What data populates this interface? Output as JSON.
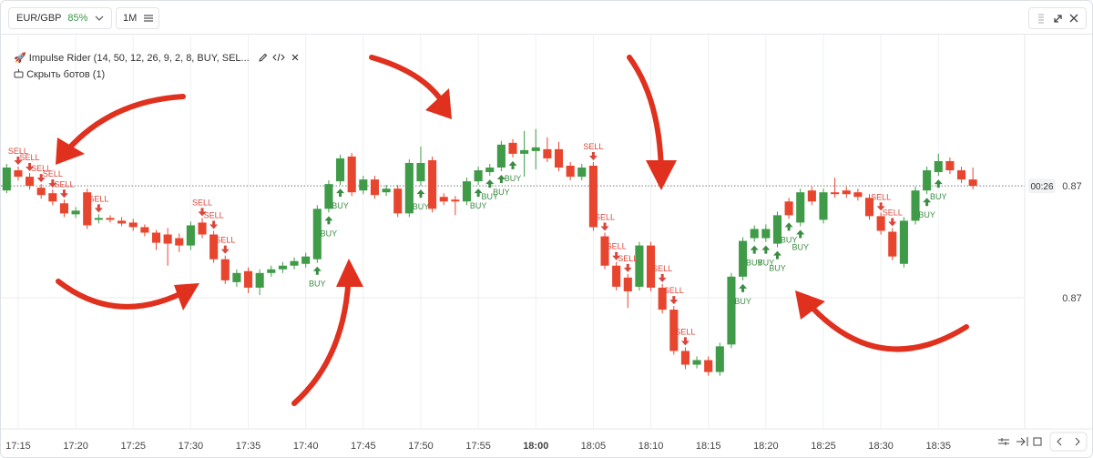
{
  "toolbar": {
    "symbol": "EUR/GBP",
    "payout": "85%",
    "timeframe": "1M"
  },
  "bot": {
    "name": "Impulse Rider (14, 50, 12, 26, 9, 2, 8, BUY, SEL...",
    "hide": "Скрыть ботов (1)"
  },
  "chart_data": {
    "type": "candlestick",
    "up_color": "#3f9b48",
    "down_color": "#e8452f",
    "grid": true,
    "ylim": [
      0.86857,
      0.87287
    ],
    "yticks": [
      {
        "value": 0.87,
        "label": "0.87"
      }
    ],
    "last_price": {
      "value": 0.87122,
      "label": "0.87"
    },
    "timer": "00:26",
    "xlim": [
      -0.5,
      88.5
    ],
    "xticks": [
      {
        "value": 1,
        "label": "17:15"
      },
      {
        "value": 6,
        "label": "17:20"
      },
      {
        "value": 11,
        "label": "17:25"
      },
      {
        "value": 16,
        "label": "17:30"
      },
      {
        "value": 21,
        "label": "17:35"
      },
      {
        "value": 26,
        "label": "17:40"
      },
      {
        "value": 31,
        "label": "17:45"
      },
      {
        "value": 36,
        "label": "17:50"
      },
      {
        "value": 41,
        "label": "17:55"
      },
      {
        "value": 46,
        "label": "18:00"
      },
      {
        "value": 51,
        "label": "18:05"
      },
      {
        "value": 56,
        "label": "18:10"
      },
      {
        "value": 61,
        "label": "18:15"
      },
      {
        "value": 66,
        "label": "18:20"
      },
      {
        "value": 71,
        "label": "18:25"
      },
      {
        "value": 76,
        "label": "18:30"
      },
      {
        "value": 81,
        "label": "18:35"
      }
    ],
    "candles": [
      {
        "open": 0.87117,
        "high": 0.87146,
        "low": 0.87114,
        "close": 0.87142
      },
      {
        "open": 0.87139,
        "high": 0.87143,
        "low": 0.87128,
        "close": 0.87132
      },
      {
        "open": 0.87132,
        "high": 0.87136,
        "low": 0.87118,
        "close": 0.87122
      },
      {
        "open": 0.8712,
        "high": 0.87124,
        "low": 0.87108,
        "close": 0.87112
      },
      {
        "open": 0.87114,
        "high": 0.87118,
        "low": 0.87101,
        "close": 0.87105
      },
      {
        "open": 0.87103,
        "high": 0.87107,
        "low": 0.87088,
        "close": 0.87092
      },
      {
        "open": 0.87091,
        "high": 0.87099,
        "low": 0.87087,
        "close": 0.87095
      },
      {
        "open": 0.87115,
        "high": 0.87119,
        "low": 0.87075,
        "close": 0.87079
      },
      {
        "open": 0.87085,
        "high": 0.87091,
        "low": 0.87081,
        "close": 0.87087
      },
      {
        "open": 0.87087,
        "high": 0.8709,
        "low": 0.87082,
        "close": 0.87085
      },
      {
        "open": 0.87084,
        "high": 0.87088,
        "low": 0.87078,
        "close": 0.87081
      },
      {
        "open": 0.87082,
        "high": 0.87086,
        "low": 0.87073,
        "close": 0.87077
      },
      {
        "open": 0.87077,
        "high": 0.8708,
        "low": 0.87067,
        "close": 0.87071
      },
      {
        "open": 0.87071,
        "high": 0.87074,
        "low": 0.87052,
        "close": 0.8706
      },
      {
        "open": 0.87069,
        "high": 0.87076,
        "low": 0.87035,
        "close": 0.87059
      },
      {
        "open": 0.87065,
        "high": 0.8707,
        "low": 0.8705,
        "close": 0.87057
      },
      {
        "open": 0.87057,
        "high": 0.87083,
        "low": 0.87052,
        "close": 0.87079
      },
      {
        "open": 0.87082,
        "high": 0.87087,
        "low": 0.87065,
        "close": 0.87069
      },
      {
        "open": 0.87069,
        "high": 0.87073,
        "low": 0.87038,
        "close": 0.87042
      },
      {
        "open": 0.87042,
        "high": 0.87046,
        "low": 0.87015,
        "close": 0.87019
      },
      {
        "open": 0.87017,
        "high": 0.87031,
        "low": 0.87012,
        "close": 0.87027
      },
      {
        "open": 0.87029,
        "high": 0.87033,
        "low": 0.87005,
        "close": 0.87011
      },
      {
        "open": 0.87011,
        "high": 0.87031,
        "low": 0.87003,
        "close": 0.87027
      },
      {
        "open": 0.87027,
        "high": 0.87035,
        "low": 0.87023,
        "close": 0.87031
      },
      {
        "open": 0.87031,
        "high": 0.87039,
        "low": 0.87027,
        "close": 0.87035
      },
      {
        "open": 0.87035,
        "high": 0.87044,
        "low": 0.87031,
        "close": 0.8704
      },
      {
        "open": 0.87037,
        "high": 0.87049,
        "low": 0.87033,
        "close": 0.87045
      },
      {
        "open": 0.87042,
        "high": 0.87101,
        "low": 0.87038,
        "close": 0.87097
      },
      {
        "open": 0.87097,
        "high": 0.87128,
        "low": 0.87093,
        "close": 0.87124
      },
      {
        "open": 0.87127,
        "high": 0.87156,
        "low": 0.87123,
        "close": 0.87152
      },
      {
        "open": 0.87154,
        "high": 0.87158,
        "low": 0.87111,
        "close": 0.87115
      },
      {
        "open": 0.87117,
        "high": 0.87133,
        "low": 0.87113,
        "close": 0.87129
      },
      {
        "open": 0.87129,
        "high": 0.87133,
        "low": 0.87108,
        "close": 0.87112
      },
      {
        "open": 0.87115,
        "high": 0.87123,
        "low": 0.87111,
        "close": 0.87119
      },
      {
        "open": 0.87119,
        "high": 0.87123,
        "low": 0.87088,
        "close": 0.87092
      },
      {
        "open": 0.87092,
        "high": 0.87151,
        "low": 0.87088,
        "close": 0.87147
      },
      {
        "open": 0.87127,
        "high": 0.87165,
        "low": 0.87122,
        "close": 0.87147
      },
      {
        "open": 0.8715,
        "high": 0.87154,
        "low": 0.87093,
        "close": 0.87097
      },
      {
        "open": 0.8711,
        "high": 0.87114,
        "low": 0.87101,
        "close": 0.87105
      },
      {
        "open": 0.87107,
        "high": 0.87111,
        "low": 0.8709,
        "close": 0.87105
      },
      {
        "open": 0.87105,
        "high": 0.87131,
        "low": 0.87101,
        "close": 0.87127
      },
      {
        "open": 0.87127,
        "high": 0.87143,
        "low": 0.87123,
        "close": 0.87139
      },
      {
        "open": 0.87137,
        "high": 0.87146,
        "low": 0.87133,
        "close": 0.87142
      },
      {
        "open": 0.87142,
        "high": 0.87171,
        "low": 0.87138,
        "close": 0.87167
      },
      {
        "open": 0.87169,
        "high": 0.87173,
        "low": 0.87153,
        "close": 0.87157
      },
      {
        "open": 0.87157,
        "high": 0.87182,
        "low": 0.87132,
        "close": 0.87161
      },
      {
        "open": 0.8716,
        "high": 0.87184,
        "low": 0.8714,
        "close": 0.87164
      },
      {
        "open": 0.87162,
        "high": 0.87175,
        "low": 0.87148,
        "close": 0.87152
      },
      {
        "open": 0.87162,
        "high": 0.8717,
        "low": 0.87138,
        "close": 0.87142
      },
      {
        "open": 0.87144,
        "high": 0.87148,
        "low": 0.87128,
        "close": 0.87132
      },
      {
        "open": 0.87132,
        "high": 0.87146,
        "low": 0.87128,
        "close": 0.87142
      },
      {
        "open": 0.87144,
        "high": 0.87148,
        "low": 0.87073,
        "close": 0.87077
      },
      {
        "open": 0.87067,
        "high": 0.87071,
        "low": 0.87031,
        "close": 0.87035
      },
      {
        "open": 0.87035,
        "high": 0.87039,
        "low": 0.87008,
        "close": 0.87012
      },
      {
        "open": 0.87022,
        "high": 0.87026,
        "low": 0.86989,
        "close": 0.87007
      },
      {
        "open": 0.87012,
        "high": 0.87061,
        "low": 0.87008,
        "close": 0.87057
      },
      {
        "open": 0.87057,
        "high": 0.87061,
        "low": 0.87007,
        "close": 0.87011
      },
      {
        "open": 0.87011,
        "high": 0.87015,
        "low": 0.86983,
        "close": 0.86987
      },
      {
        "open": 0.86987,
        "high": 0.86991,
        "low": 0.86938,
        "close": 0.86942
      },
      {
        "open": 0.86942,
        "high": 0.86946,
        "low": 0.86922,
        "close": 0.86927
      },
      {
        "open": 0.86927,
        "high": 0.86936,
        "low": 0.86923,
        "close": 0.86932
      },
      {
        "open": 0.86932,
        "high": 0.86936,
        "low": 0.86915,
        "close": 0.86919
      },
      {
        "open": 0.86919,
        "high": 0.86951,
        "low": 0.86915,
        "close": 0.86947
      },
      {
        "open": 0.86949,
        "high": 0.87027,
        "low": 0.86945,
        "close": 0.87023
      },
      {
        "open": 0.87023,
        "high": 0.87066,
        "low": 0.87019,
        "close": 0.87062
      },
      {
        "open": 0.87065,
        "high": 0.87079,
        "low": 0.87061,
        "close": 0.87075
      },
      {
        "open": 0.87065,
        "high": 0.8708,
        "low": 0.87061,
        "close": 0.87075
      },
      {
        "open": 0.87059,
        "high": 0.87094,
        "low": 0.87055,
        "close": 0.8709
      },
      {
        "open": 0.87105,
        "high": 0.87109,
        "low": 0.87086,
        "close": 0.8709
      },
      {
        "open": 0.87082,
        "high": 0.87119,
        "low": 0.87078,
        "close": 0.87115
      },
      {
        "open": 0.87117,
        "high": 0.87121,
        "low": 0.87101,
        "close": 0.87105
      },
      {
        "open": 0.87085,
        "high": 0.87119,
        "low": 0.87081,
        "close": 0.87115
      },
      {
        "open": 0.87115,
        "high": 0.87131,
        "low": 0.87109,
        "close": 0.87113
      },
      {
        "open": 0.87117,
        "high": 0.87121,
        "low": 0.87109,
        "close": 0.87113
      },
      {
        "open": 0.87115,
        "high": 0.87119,
        "low": 0.87106,
        "close": 0.8711
      },
      {
        "open": 0.87109,
        "high": 0.87113,
        "low": 0.87085,
        "close": 0.87089
      },
      {
        "open": 0.87089,
        "high": 0.87093,
        "low": 0.87069,
        "close": 0.87073
      },
      {
        "open": 0.87072,
        "high": 0.87076,
        "low": 0.87041,
        "close": 0.87045
      },
      {
        "open": 0.87037,
        "high": 0.87088,
        "low": 0.87033,
        "close": 0.87084
      },
      {
        "open": 0.87084,
        "high": 0.87121,
        "low": 0.8708,
        "close": 0.87117
      },
      {
        "open": 0.87117,
        "high": 0.87143,
        "low": 0.87113,
        "close": 0.87139
      },
      {
        "open": 0.87137,
        "high": 0.87157,
        "low": 0.87133,
        "close": 0.87149
      },
      {
        "open": 0.87149,
        "high": 0.87153,
        "low": 0.87135,
        "close": 0.87139
      },
      {
        "open": 0.87139,
        "high": 0.87143,
        "low": 0.87125,
        "close": 0.87129
      },
      {
        "open": 0.87129,
        "high": 0.87142,
        "low": 0.87118,
        "close": 0.87122
      }
    ],
    "signals": [
      {
        "candle": 1,
        "label": "SELL"
      },
      {
        "candle": 2,
        "label": "SELL"
      },
      {
        "candle": 3,
        "label": "SELL"
      },
      {
        "candle": 4,
        "label": "SELL"
      },
      {
        "candle": 5,
        "label": "SELL"
      },
      {
        "candle": 8,
        "label": "SELL"
      },
      {
        "candle": 17,
        "label": "SELL"
      },
      {
        "candle": 18,
        "label": "SELL"
      },
      {
        "candle": 19,
        "label": "SELL"
      },
      {
        "candle": 27,
        "label": "BUY"
      },
      {
        "candle": 28,
        "label": "BUY"
      },
      {
        "candle": 29,
        "label": "BUY"
      },
      {
        "candle": 36,
        "label": "BUY"
      },
      {
        "candle": 41,
        "label": "BUY"
      },
      {
        "candle": 42,
        "label": "BUY"
      },
      {
        "candle": 43,
        "label": "BUY"
      },
      {
        "candle": 44,
        "label": "BUY"
      },
      {
        "candle": 51,
        "label": "SELL"
      },
      {
        "candle": 52,
        "label": "SELL"
      },
      {
        "candle": 53,
        "label": "SELL"
      },
      {
        "candle": 54,
        "label": "SELL"
      },
      {
        "candle": 57,
        "label": "SELL"
      },
      {
        "candle": 58,
        "label": "SELL"
      },
      {
        "candle": 59,
        "label": "SELL"
      },
      {
        "candle": 64,
        "label": "BUY"
      },
      {
        "candle": 65,
        "label": "BUY"
      },
      {
        "candle": 66,
        "label": "BUY"
      },
      {
        "candle": 67,
        "label": "BUY"
      },
      {
        "candle": 68,
        "label": "BUY"
      },
      {
        "candle": 69,
        "label": "BUY"
      },
      {
        "candle": 76,
        "label": "SELL"
      },
      {
        "candle": 77,
        "label": "SELL"
      },
      {
        "candle": 80,
        "label": "BUY"
      },
      {
        "candle": 81,
        "label": "BUY"
      }
    ]
  }
}
